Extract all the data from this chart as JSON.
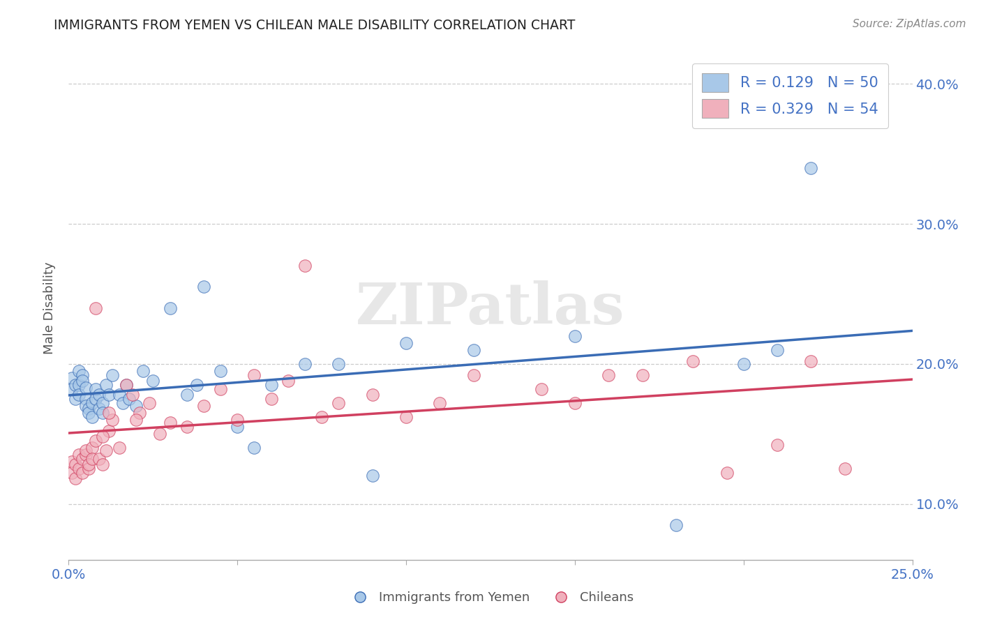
{
  "title": "IMMIGRANTS FROM YEMEN VS CHILEAN MALE DISABILITY CORRELATION CHART",
  "source": "Source: ZipAtlas.com",
  "xlabel_series1": "Immigrants from Yemen",
  "xlabel_series2": "Chileans",
  "ylabel": "Male Disability",
  "xlim": [
    0.0,
    0.25
  ],
  "ylim": [
    0.06,
    0.42
  ],
  "xticks": [
    0.0,
    0.05,
    0.1,
    0.15,
    0.2,
    0.25
  ],
  "xtick_labels": [
    "0.0%",
    "",
    "",
    "",
    "",
    "25.0%"
  ],
  "yticks": [
    0.1,
    0.2,
    0.3,
    0.4
  ],
  "ytick_labels": [
    "10.0%",
    "20.0%",
    "30.0%",
    "40.0%"
  ],
  "color_blue": "#a8c8e8",
  "color_pink": "#f0b0bc",
  "line_color_blue": "#3a6cb5",
  "line_color_pink": "#d04060",
  "R1": 0.129,
  "N1": 50,
  "R2": 0.329,
  "N2": 54,
  "watermark": "ZIPatlas",
  "series1_x": [
    0.001,
    0.001,
    0.002,
    0.002,
    0.003,
    0.003,
    0.003,
    0.004,
    0.004,
    0.005,
    0.005,
    0.005,
    0.006,
    0.006,
    0.007,
    0.007,
    0.008,
    0.008,
    0.009,
    0.009,
    0.01,
    0.01,
    0.011,
    0.012,
    0.013,
    0.015,
    0.016,
    0.017,
    0.018,
    0.02,
    0.022,
    0.025,
    0.03,
    0.035,
    0.038,
    0.04,
    0.045,
    0.05,
    0.055,
    0.06,
    0.07,
    0.08,
    0.09,
    0.1,
    0.12,
    0.15,
    0.18,
    0.2,
    0.21,
    0.22
  ],
  "series1_y": [
    0.19,
    0.182,
    0.185,
    0.175,
    0.195,
    0.185,
    0.178,
    0.192,
    0.188,
    0.183,
    0.175,
    0.17,
    0.168,
    0.165,
    0.172,
    0.162,
    0.175,
    0.182,
    0.178,
    0.168,
    0.172,
    0.165,
    0.185,
    0.178,
    0.192,
    0.178,
    0.172,
    0.185,
    0.175,
    0.17,
    0.195,
    0.188,
    0.24,
    0.178,
    0.185,
    0.255,
    0.195,
    0.155,
    0.14,
    0.185,
    0.2,
    0.2,
    0.12,
    0.215,
    0.21,
    0.22,
    0.085,
    0.2,
    0.21,
    0.34
  ],
  "series2_x": [
    0.001,
    0.001,
    0.002,
    0.002,
    0.003,
    0.003,
    0.004,
    0.004,
    0.005,
    0.005,
    0.006,
    0.006,
    0.007,
    0.007,
    0.008,
    0.009,
    0.01,
    0.011,
    0.012,
    0.013,
    0.015,
    0.017,
    0.019,
    0.021,
    0.024,
    0.027,
    0.03,
    0.035,
    0.04,
    0.045,
    0.05,
    0.055,
    0.06,
    0.065,
    0.07,
    0.075,
    0.08,
    0.09,
    0.1,
    0.11,
    0.12,
    0.14,
    0.15,
    0.16,
    0.17,
    0.185,
    0.195,
    0.21,
    0.22,
    0.23,
    0.008,
    0.01,
    0.012,
    0.02
  ],
  "series2_y": [
    0.13,
    0.122,
    0.128,
    0.118,
    0.135,
    0.125,
    0.132,
    0.122,
    0.135,
    0.138,
    0.125,
    0.128,
    0.14,
    0.132,
    0.145,
    0.132,
    0.128,
    0.138,
    0.152,
    0.16,
    0.14,
    0.185,
    0.178,
    0.165,
    0.172,
    0.15,
    0.158,
    0.155,
    0.17,
    0.182,
    0.16,
    0.192,
    0.175,
    0.188,
    0.27,
    0.162,
    0.172,
    0.178,
    0.162,
    0.172,
    0.192,
    0.182,
    0.172,
    0.192,
    0.192,
    0.202,
    0.122,
    0.142,
    0.202,
    0.125,
    0.24,
    0.148,
    0.165,
    0.16
  ]
}
